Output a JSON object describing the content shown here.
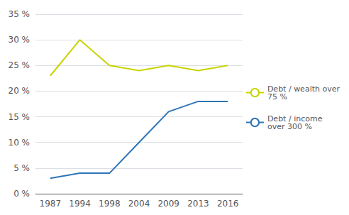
{
  "chart_data": {
    "type": "line",
    "categories": [
      "1987",
      "1994",
      "1998",
      "2004",
      "2009",
      "2013",
      "2016"
    ],
    "series": [
      {
        "name": "Debt / wealth over\n75 %",
        "color": "#c8d400",
        "values": [
          23,
          30,
          25,
          24,
          25,
          24,
          25
        ]
      },
      {
        "name": "Debt / income\nover 300 %",
        "color": "#2e75b6",
        "values": [
          3,
          4,
          4,
          10,
          16,
          18,
          18
        ]
      }
    ],
    "ylim": [
      0,
      35
    ],
    "yticks": [
      {
        "value": 0,
        "label": "0 %"
      },
      {
        "value": 5,
        "label": "5 %"
      },
      {
        "value": 10,
        "label": "10 %"
      },
      {
        "value": 15,
        "label": "15 %"
      },
      {
        "value": 20,
        "label": "20 %"
      },
      {
        "value": 25,
        "label": "25 %"
      },
      {
        "value": 30,
        "label": "30 %"
      },
      {
        "value": 35,
        "label": "35 %"
      }
    ],
    "grid": true,
    "legend": "right"
  }
}
